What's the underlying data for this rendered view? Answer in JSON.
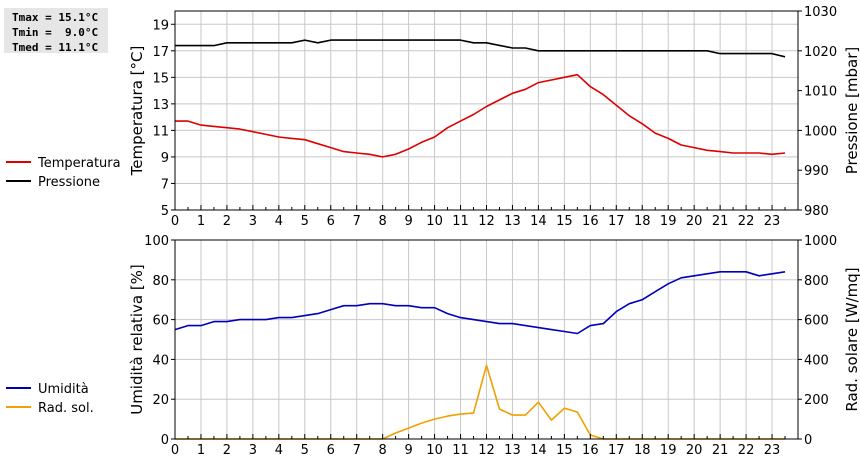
{
  "stats": {
    "tmax": "Tmax = 15.1°C",
    "tmin": "Tmin =  9.0°C",
    "tmed": "Tmed = 11.1°C"
  },
  "colors": {
    "temperature": "#dd0000",
    "pressure": "#000000",
    "humidity": "#0000bb",
    "solar": "#f0a000",
    "grid": "#c8c8c8"
  },
  "chart_data": [
    {
      "type": "line",
      "xticks": [
        "0",
        "1",
        "2",
        "3",
        "4",
        "5",
        "6",
        "7",
        "8",
        "9",
        "10",
        "11",
        "12",
        "13",
        "14",
        "15",
        "16",
        "17",
        "18",
        "19",
        "20",
        "21",
        "22",
        "23"
      ],
      "ylabel": "Temperatura [°C]",
      "y2label": "Pressione [mbar]",
      "ylim": [
        5,
        20
      ],
      "y2lim": [
        980,
        1030
      ],
      "yticks": [
        5,
        7,
        9,
        11,
        13,
        15,
        17,
        19
      ],
      "y2ticks": [
        980,
        990,
        1000,
        1010,
        1020,
        1030
      ],
      "grid": true,
      "legend_position": "left",
      "series": [
        {
          "name": "Temperatura",
          "axis": "left",
          "color": "#dd0000",
          "x": [
            0,
            0.5,
            1,
            1.5,
            2,
            2.5,
            3,
            3.5,
            4,
            4.5,
            5,
            5.5,
            6,
            6.5,
            7,
            7.5,
            8,
            8.5,
            9,
            9.5,
            10,
            10.5,
            11,
            11.5,
            12,
            12.5,
            13,
            13.5,
            14,
            14.5,
            15,
            15.5,
            16,
            16.5,
            17,
            17.5,
            18,
            18.5,
            19,
            19.5,
            20,
            20.5,
            21,
            21.5,
            22,
            22.5,
            23,
            23.5
          ],
          "y": [
            11.7,
            11.7,
            11.4,
            11.3,
            11.2,
            11.1,
            10.9,
            10.7,
            10.5,
            10.4,
            10.3,
            10.0,
            9.7,
            9.4,
            9.3,
            9.2,
            9.0,
            9.2,
            9.6,
            10.1,
            10.5,
            11.2,
            11.7,
            12.2,
            12.8,
            13.3,
            13.8,
            14.1,
            14.6,
            14.8,
            15.0,
            15.2,
            14.3,
            13.7,
            12.9,
            12.1,
            11.5,
            10.8,
            10.4,
            9.9,
            9.7,
            9.5,
            9.4,
            9.3,
            9.3,
            9.3,
            9.2,
            9.3
          ]
        },
        {
          "name": "Pressione",
          "axis": "right",
          "color": "#000000",
          "x": [
            0,
            1.5,
            2,
            4.5,
            5,
            5.5,
            6,
            11,
            11.5,
            12,
            13,
            13.5,
            14,
            20.5,
            21,
            23,
            23.5
          ],
          "y": [
            1021.3,
            1021.3,
            1022,
            1022,
            1022.7,
            1022,
            1022.7,
            1022.7,
            1022,
            1022,
            1020.7,
            1020.7,
            1020,
            1020,
            1019.3,
            1019.3,
            1018.5
          ]
        }
      ]
    },
    {
      "type": "line",
      "xticks": [
        "0",
        "1",
        "2",
        "3",
        "4",
        "5",
        "6",
        "7",
        "8",
        "9",
        "10",
        "11",
        "12",
        "13",
        "14",
        "15",
        "16",
        "17",
        "18",
        "19",
        "20",
        "21",
        "22",
        "23"
      ],
      "ylabel": "Umidità relativa [%]",
      "y2label": "Rad. solare [W/mq]",
      "ylim": [
        0,
        100
      ],
      "y2lim": [
        0,
        1000
      ],
      "yticks": [
        0,
        20,
        40,
        60,
        80,
        100
      ],
      "y2ticks": [
        0,
        200,
        400,
        600,
        800,
        1000
      ],
      "grid": true,
      "legend_position": "left",
      "series": [
        {
          "name": "Umidità",
          "axis": "left",
          "color": "#0000bb",
          "x": [
            0,
            0.5,
            1,
            1.5,
            2,
            2.5,
            3,
            3.5,
            4,
            4.5,
            5,
            5.5,
            6,
            6.5,
            7,
            7.5,
            8,
            8.5,
            9,
            9.5,
            10,
            10.5,
            11,
            11.5,
            12,
            12.5,
            13,
            13.5,
            14,
            14.5,
            15,
            15.5,
            16,
            16.5,
            17,
            17.5,
            18,
            18.5,
            19,
            19.5,
            20,
            20.5,
            21,
            21.5,
            22,
            22.5,
            23,
            23.5
          ],
          "y": [
            55,
            57,
            57,
            59,
            59,
            60,
            60,
            60,
            61,
            61,
            62,
            63,
            65,
            67,
            67,
            68,
            68,
            67,
            67,
            66,
            66,
            63,
            61,
            60,
            59,
            58,
            58,
            57,
            56,
            55,
            54,
            53,
            57,
            58,
            64,
            68,
            70,
            74,
            78,
            81,
            82,
            83,
            84,
            84,
            84,
            82,
            83,
            84
          ]
        },
        {
          "name": "Rad. sol.",
          "axis": "right",
          "color": "#f0a000",
          "x": [
            0,
            8,
            8.5,
            9,
            9.5,
            10,
            10.5,
            11,
            11.5,
            12,
            12.5,
            13,
            13.5,
            14,
            14.5,
            15,
            15.5,
            16,
            16.5,
            23.5
          ],
          "y": [
            0,
            0,
            30,
            55,
            80,
            100,
            115,
            125,
            130,
            370,
            150,
            120,
            120,
            185,
            95,
            155,
            135,
            20,
            0,
            0
          ]
        }
      ]
    }
  ]
}
